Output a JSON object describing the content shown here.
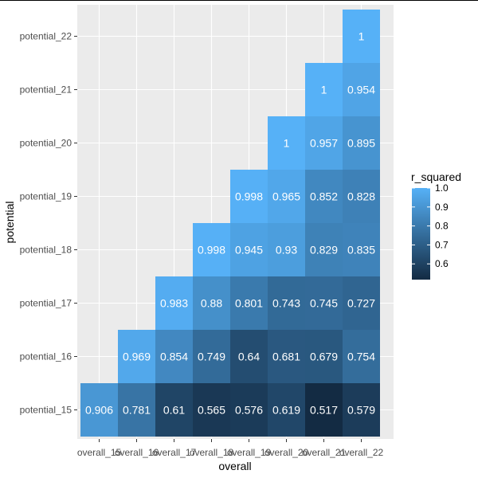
{
  "chart_data": {
    "type": "heatmap",
    "xlabel": "overall",
    "ylabel": "potential",
    "x_categories": [
      "overall_15",
      "overall_16",
      "overall_17",
      "overall_18",
      "overall_19",
      "overall_20",
      "overall_21",
      "overall_22"
    ],
    "y_categories": [
      "potential_15",
      "potential_16",
      "potential_17",
      "potential_18",
      "potential_19",
      "potential_20",
      "potential_21",
      "potential_22"
    ],
    "cells": [
      {
        "x": "overall_15",
        "y": "potential_15",
        "value": 0.906,
        "label": "0.906"
      },
      {
        "x": "overall_16",
        "y": "potential_15",
        "value": 0.781,
        "label": "0.781"
      },
      {
        "x": "overall_17",
        "y": "potential_15",
        "value": 0.61,
        "label": "0.61"
      },
      {
        "x": "overall_18",
        "y": "potential_15",
        "value": 0.565,
        "label": "0.565"
      },
      {
        "x": "overall_19",
        "y": "potential_15",
        "value": 0.576,
        "label": "0.576"
      },
      {
        "x": "overall_20",
        "y": "potential_15",
        "value": 0.619,
        "label": "0.619"
      },
      {
        "x": "overall_21",
        "y": "potential_15",
        "value": 0.517,
        "label": "0.517"
      },
      {
        "x": "overall_22",
        "y": "potential_15",
        "value": 0.579,
        "label": "0.579"
      },
      {
        "x": "overall_16",
        "y": "potential_16",
        "value": 0.969,
        "label": "0.969"
      },
      {
        "x": "overall_17",
        "y": "potential_16",
        "value": 0.854,
        "label": "0.854"
      },
      {
        "x": "overall_18",
        "y": "potential_16",
        "value": 0.749,
        "label": "0.749"
      },
      {
        "x": "overall_19",
        "y": "potential_16",
        "value": 0.64,
        "label": "0.64"
      },
      {
        "x": "overall_20",
        "y": "potential_16",
        "value": 0.681,
        "label": "0.681"
      },
      {
        "x": "overall_21",
        "y": "potential_16",
        "value": 0.679,
        "label": "0.679"
      },
      {
        "x": "overall_22",
        "y": "potential_16",
        "value": 0.754,
        "label": "0.754"
      },
      {
        "x": "overall_17",
        "y": "potential_17",
        "value": 0.983,
        "label": "0.983"
      },
      {
        "x": "overall_18",
        "y": "potential_17",
        "value": 0.88,
        "label": "0.88"
      },
      {
        "x": "overall_19",
        "y": "potential_17",
        "value": 0.801,
        "label": "0.801"
      },
      {
        "x": "overall_20",
        "y": "potential_17",
        "value": 0.743,
        "label": "0.743"
      },
      {
        "x": "overall_21",
        "y": "potential_17",
        "value": 0.745,
        "label": "0.745"
      },
      {
        "x": "overall_22",
        "y": "potential_17",
        "value": 0.727,
        "label": "0.727"
      },
      {
        "x": "overall_18",
        "y": "potential_18",
        "value": 0.998,
        "label": "0.998"
      },
      {
        "x": "overall_19",
        "y": "potential_18",
        "value": 0.945,
        "label": "0.945"
      },
      {
        "x": "overall_20",
        "y": "potential_18",
        "value": 0.93,
        "label": "0.93"
      },
      {
        "x": "overall_21",
        "y": "potential_18",
        "value": 0.829,
        "label": "0.829"
      },
      {
        "x": "overall_22",
        "y": "potential_18",
        "value": 0.835,
        "label": "0.835"
      },
      {
        "x": "overall_19",
        "y": "potential_19",
        "value": 0.998,
        "label": "0.998"
      },
      {
        "x": "overall_20",
        "y": "potential_19",
        "value": 0.965,
        "label": "0.965"
      },
      {
        "x": "overall_21",
        "y": "potential_19",
        "value": 0.852,
        "label": "0.852"
      },
      {
        "x": "overall_22",
        "y": "potential_19",
        "value": 0.828,
        "label": "0.828"
      },
      {
        "x": "overall_20",
        "y": "potential_20",
        "value": 1,
        "label": "1"
      },
      {
        "x": "overall_21",
        "y": "potential_20",
        "value": 0.957,
        "label": "0.957"
      },
      {
        "x": "overall_22",
        "y": "potential_20",
        "value": 0.895,
        "label": "0.895"
      },
      {
        "x": "overall_21",
        "y": "potential_21",
        "value": 1,
        "label": "1"
      },
      {
        "x": "overall_22",
        "y": "potential_21",
        "value": 0.954,
        "label": "0.954"
      },
      {
        "x": "overall_22",
        "y": "potential_22",
        "value": 1,
        "label": "1"
      }
    ],
    "legend": {
      "title": "r_squared",
      "placement": "right",
      "ticks": [
        1.0,
        0.9,
        0.8,
        0.7,
        0.6
      ],
      "tick_labels": [
        "1.0",
        "0.9",
        "0.8",
        "0.7",
        "0.6"
      ],
      "range": [
        0.517,
        1.0
      ]
    },
    "colors": {
      "low": "#132b43",
      "high": "#56b1f7",
      "panel_background": "#ebebeb",
      "grid": "#ffffff",
      "cell_text": "#ffffff"
    },
    "grid": true
  }
}
